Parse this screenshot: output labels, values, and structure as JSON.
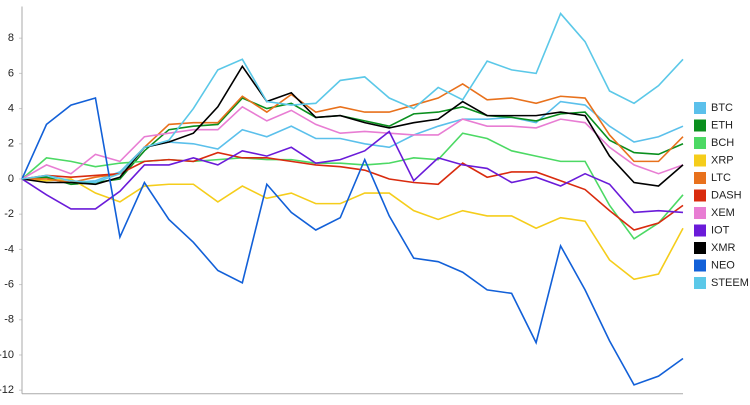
{
  "chart_data": {
    "type": "line",
    "categories": [
      null,
      null,
      null,
      null,
      null,
      null,
      null,
      null,
      null,
      null,
      null,
      null,
      null,
      null,
      null,
      null,
      null,
      null,
      null,
      null,
      null,
      null,
      null,
      null,
      null,
      null,
      null,
      null
    ],
    "series": [
      {
        "name": "BTC",
        "color": "#5bc0eb",
        "values": [
          0,
          0.1,
          -0.2,
          -0.1,
          0.4,
          1.8,
          2.1,
          2.0,
          1.7,
          2.8,
          2.4,
          3.0,
          2.3,
          2.3,
          2.0,
          1.8,
          2.5,
          3.0,
          3.4,
          3.4,
          3.5,
          3.2,
          4.4,
          4.2,
          3.0,
          2.1,
          2.4,
          3.0
        ]
      },
      {
        "name": "ETH",
        "color": "#0a8f1e",
        "values": [
          0,
          0.1,
          -0.3,
          -0.2,
          0,
          1.6,
          2.8,
          3.0,
          3.1,
          4.6,
          4.0,
          4.3,
          3.5,
          3.6,
          3.3,
          3.0,
          3.7,
          3.8,
          4.1,
          3.6,
          3.5,
          3.3,
          3.7,
          3.8,
          2.2,
          1.5,
          1.4,
          2.0
        ]
      },
      {
        "name": "BCH",
        "color": "#4cd964",
        "values": [
          0,
          1.2,
          1.0,
          0.7,
          0.9,
          1.0,
          1.1,
          1.0,
          1.1,
          1.2,
          1.1,
          1.1,
          0.9,
          0.9,
          0.8,
          0.9,
          1.2,
          1.1,
          2.6,
          2.3,
          1.6,
          1.3,
          1.0,
          1.0,
          -1.5,
          -3.4,
          -2.5,
          -0.9
        ]
      },
      {
        "name": "XRP",
        "color": "#f5cd1b",
        "values": [
          0,
          -0.1,
          0,
          -0.8,
          -1.3,
          -0.4,
          -0.3,
          -0.3,
          -1.3,
          -0.4,
          -1.1,
          -0.8,
          -1.4,
          -1.4,
          -0.8,
          -0.8,
          -1.8,
          -2.3,
          -1.8,
          -2.1,
          -2.1,
          -2.8,
          -2.2,
          -2.4,
          -4.6,
          -5.7,
          -5.4,
          -2.8
        ]
      },
      {
        "name": "LTC",
        "color": "#e8711c",
        "values": [
          0,
          0,
          -0.2,
          0.1,
          0.3,
          1.8,
          3.1,
          3.2,
          3.2,
          4.7,
          3.8,
          4.8,
          3.8,
          4.1,
          3.8,
          3.8,
          4.2,
          4.6,
          5.4,
          4.5,
          4.6,
          4.3,
          4.7,
          4.6,
          2.5,
          1.0,
          1.0,
          2.4
        ]
      },
      {
        "name": "DASH",
        "color": "#d92b0e",
        "values": [
          0,
          0.2,
          0.1,
          0.2,
          0.3,
          1.0,
          1.1,
          1.0,
          1.5,
          1.2,
          1.2,
          1.0,
          0.8,
          0.7,
          0.5,
          0,
          -0.2,
          -0.3,
          0.9,
          0.1,
          0.4,
          0.4,
          -0.1,
          -0.6,
          -1.8,
          -2.9,
          -2.5,
          -1.5
        ]
      },
      {
        "name": "XEM",
        "color": "#e87dd3",
        "values": [
          0,
          0.8,
          0.3,
          1.4,
          1.0,
          2.4,
          2.6,
          2.8,
          2.8,
          4.1,
          3.3,
          3.9,
          3.1,
          2.6,
          2.7,
          2.6,
          2.5,
          2.5,
          3.4,
          3.0,
          3.0,
          2.9,
          3.4,
          3.2,
          1.8,
          0.8,
          0.3,
          0.8
        ]
      },
      {
        "name": "IOT",
        "color": "#6a1bd9",
        "values": [
          0,
          -0.9,
          -1.7,
          -1.7,
          -0.7,
          0.8,
          0.8,
          1.2,
          0.8,
          1.6,
          1.3,
          1.8,
          0.9,
          1.1,
          1.6,
          2.7,
          -0.1,
          1.2,
          0.8,
          0.6,
          -0.2,
          0.1,
          -0.4,
          0.3,
          -0.3,
          -1.9,
          -1.8,
          -1.9
        ]
      },
      {
        "name": "XMR",
        "color": "#000000",
        "values": [
          0,
          -0.2,
          -0.2,
          -0.3,
          0.1,
          1.8,
          2.1,
          2.6,
          4.1,
          6.4,
          4.4,
          4.9,
          3.5,
          3.6,
          3.2,
          2.9,
          3.2,
          3.4,
          4.4,
          3.6,
          3.6,
          3.6,
          3.8,
          3.6,
          1.3,
          -0.2,
          -0.4,
          0.8
        ]
      },
      {
        "name": "NEO",
        "color": "#1260d8",
        "values": [
          0,
          3.1,
          4.2,
          4.6,
          -3.3,
          -0.2,
          -2.3,
          -3.6,
          -5.2,
          -5.9,
          -0.3,
          -1.9,
          -2.9,
          -2.2,
          1.1,
          -2.1,
          -4.5,
          -4.7,
          -5.3,
          -6.3,
          -6.5,
          -9.3,
          -3.8,
          -6.3,
          -9.2,
          -11.7,
          -11.2,
          -10.2
        ]
      },
      {
        "name": "STEEM",
        "color": "#5bc8e8",
        "values": [
          0,
          0.2,
          -0.1,
          -0.2,
          0.3,
          1.8,
          2.2,
          4.0,
          6.2,
          6.8,
          4.4,
          4.2,
          4.3,
          5.6,
          5.8,
          4.6,
          4.0,
          5.2,
          4.5,
          6.7,
          6.2,
          6.0,
          9.4,
          7.8,
          5.0,
          4.3,
          5.3,
          6.8
        ]
      }
    ],
    "ylim": [
      -12.2,
      9.8
    ],
    "yticks": [
      8,
      6,
      4,
      2,
      0,
      -2,
      -4,
      -6,
      -8,
      -10,
      -12
    ],
    "grid": false,
    "legend": "right"
  }
}
